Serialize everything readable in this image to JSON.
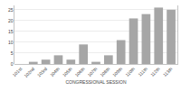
{
  "chart_data": {
    "type": "bar",
    "x_label": "CONGRESSIONAL SESSION",
    "categories": [
      "101st",
      "102nd",
      "103rd",
      "104th",
      "105th",
      "106th",
      "107th",
      "108th",
      "109th",
      "110th",
      "111th",
      "112th",
      "113th"
    ],
    "values": [
      0,
      1,
      2,
      4,
      2,
      9,
      1,
      4,
      11,
      21,
      23,
      26,
      25
    ],
    "color": "#a6a6a6",
    "ylim": [
      0,
      27
    ],
    "yticks": [
      0,
      5,
      10,
      15,
      20,
      25
    ],
    "grid": true
  }
}
